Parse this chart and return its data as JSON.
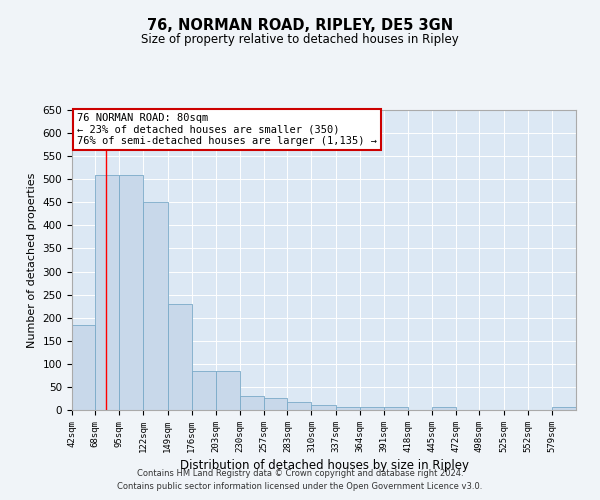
{
  "title": "76, NORMAN ROAD, RIPLEY, DE5 3GN",
  "subtitle": "Size of property relative to detached houses in Ripley",
  "xlabel": "Distribution of detached houses by size in Ripley",
  "ylabel": "Number of detached properties",
  "bar_color": "#c8d8ea",
  "bar_edge_color": "#7aaac8",
  "bg_color": "#dce8f4",
  "grid_color": "#ffffff",
  "categories": [
    "42sqm",
    "68sqm",
    "95sqm",
    "122sqm",
    "149sqm",
    "176sqm",
    "203sqm",
    "230sqm",
    "257sqm",
    "283sqm",
    "310sqm",
    "337sqm",
    "364sqm",
    "391sqm",
    "418sqm",
    "445sqm",
    "472sqm",
    "498sqm",
    "525sqm",
    "552sqm",
    "579sqm"
  ],
  "values": [
    185,
    510,
    510,
    450,
    230,
    85,
    85,
    30,
    25,
    17,
    10,
    7,
    7,
    7,
    0,
    7,
    0,
    0,
    0,
    0,
    7
  ],
  "bin_edges": [
    42,
    68,
    95,
    122,
    149,
    176,
    203,
    230,
    257,
    283,
    310,
    337,
    364,
    391,
    418,
    445,
    472,
    498,
    525,
    552,
    579,
    606
  ],
  "ylim": [
    0,
    650
  ],
  "yticks": [
    0,
    50,
    100,
    150,
    200,
    250,
    300,
    350,
    400,
    450,
    500,
    550,
    600,
    650
  ],
  "red_line_x": 80,
  "annotation_text": "76 NORMAN ROAD: 80sqm\n← 23% of detached houses are smaller (350)\n76% of semi-detached houses are larger (1,135) →",
  "annotation_box_color": "#ffffff",
  "annotation_box_edge": "#cc0000",
  "footer_line1": "Contains HM Land Registry data © Crown copyright and database right 2024.",
  "footer_line2": "Contains public sector information licensed under the Open Government Licence v3.0."
}
